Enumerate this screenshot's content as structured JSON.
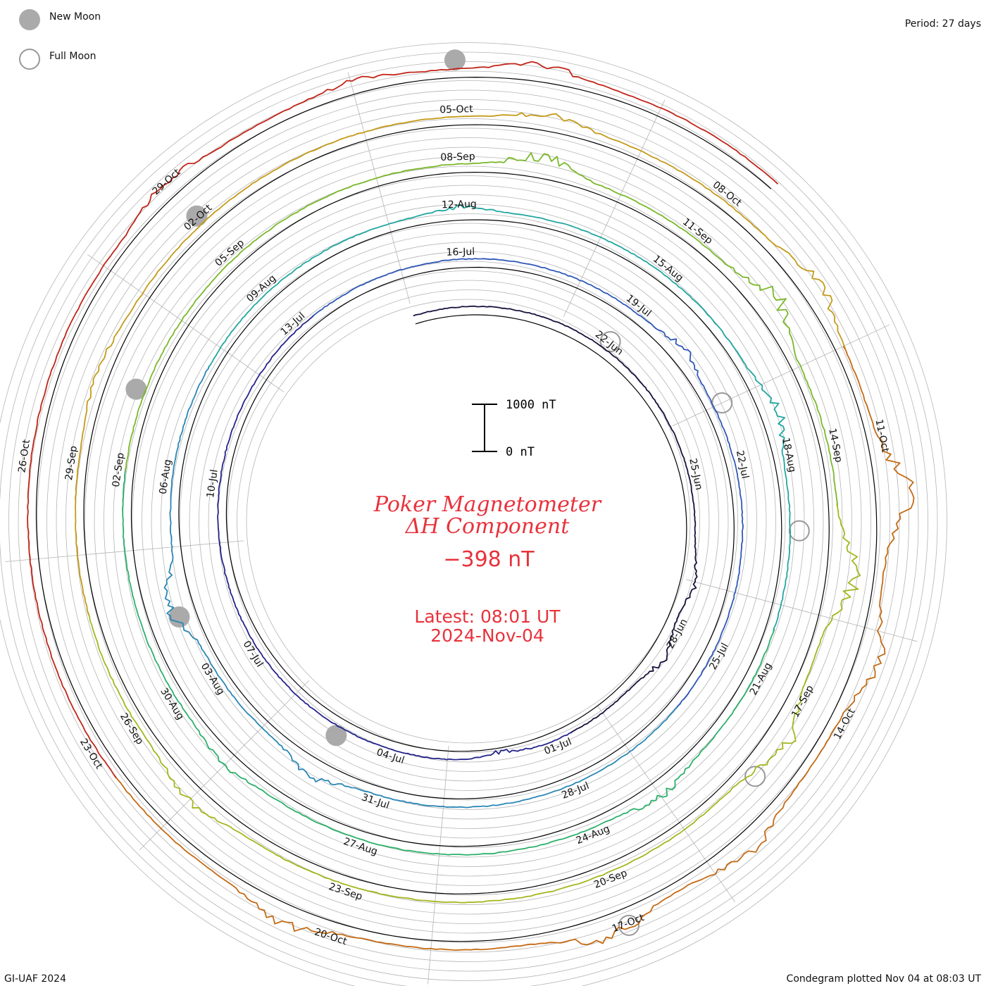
{
  "legend": {
    "new_moon": "New Moon",
    "full_moon": "Full Moon"
  },
  "period_label": "Period: 27 days",
  "title_line1": "Poker Magnetometer",
  "title_line2": "ΔH Component",
  "current_value": "−398 nT",
  "latest_time": "Latest: 08:01 UT",
  "latest_date": "2024-Nov-04",
  "credit": "GI-UAF 2024",
  "plotted_note": "Condegram plotted Nov 04 at 08:03 UT",
  "colors": {
    "grid": "#b4b4b4",
    "baseline": "#000000",
    "title": "#e8323c",
    "moon_fill": "#aaaaaa",
    "moon_stroke": "#999999"
  },
  "chart_data": {
    "type": "line",
    "layout": "spiral condegram",
    "period_days": 27,
    "start_date": "2024-06-18",
    "end_date": "2024-11-04",
    "scale_bar": {
      "low": 0,
      "high": 1000,
      "low_label": "0 nT",
      "high_label": "1000 nT"
    },
    "series_colors": [
      "#1a0f3c",
      "#25248a",
      "#2f58b8",
      "#2a86b5",
      "#22a6a0",
      "#2cb06a",
      "#7ab82a",
      "#a4b61c",
      "#c49a18",
      "#c46a14",
      "#c02418"
    ],
    "date_labels": [
      {
        "day": 4,
        "text": "22-Jun"
      },
      {
        "day": 7,
        "text": "25-Jun"
      },
      {
        "day": 10,
        "text": "28-Jun"
      },
      {
        "day": 13,
        "text": "01-Jul"
      },
      {
        "day": 16,
        "text": "04-Jul"
      },
      {
        "day": 19,
        "text": "07-Jul"
      },
      {
        "day": 22,
        "text": "10-Jul"
      },
      {
        "day": 25,
        "text": "13-Jul"
      },
      {
        "day": 28,
        "text": "16-Jul"
      },
      {
        "day": 31,
        "text": "19-Jul"
      },
      {
        "day": 34,
        "text": "22-Jul"
      },
      {
        "day": 37,
        "text": "25-Jul"
      },
      {
        "day": 40,
        "text": "28-Jul"
      },
      {
        "day": 43,
        "text": "31-Jul"
      },
      {
        "day": 46,
        "text": "03-Aug"
      },
      {
        "day": 49,
        "text": "06-Aug"
      },
      {
        "day": 52,
        "text": "09-Aug"
      },
      {
        "day": 55,
        "text": "12-Aug"
      },
      {
        "day": 58,
        "text": "15-Aug"
      },
      {
        "day": 61,
        "text": "18-Aug"
      },
      {
        "day": 64,
        "text": "21-Aug"
      },
      {
        "day": 67,
        "text": "24-Aug"
      },
      {
        "day": 70,
        "text": "27-Aug"
      },
      {
        "day": 73,
        "text": "30-Aug"
      },
      {
        "day": 76,
        "text": "02-Sep"
      },
      {
        "day": 79,
        "text": "05-Sep"
      },
      {
        "day": 82,
        "text": "08-Sep"
      },
      {
        "day": 85,
        "text": "11-Sep"
      },
      {
        "day": 88,
        "text": "14-Sep"
      },
      {
        "day": 91,
        "text": "17-Sep"
      },
      {
        "day": 94,
        "text": "20-Sep"
      },
      {
        "day": 97,
        "text": "23-Sep"
      },
      {
        "day": 100,
        "text": "26-Sep"
      },
      {
        "day": 103,
        "text": "29-Sep"
      },
      {
        "day": 106,
        "text": "02-Oct"
      },
      {
        "day": 109,
        "text": "05-Oct"
      },
      {
        "day": 112,
        "text": "08-Oct"
      },
      {
        "day": 115,
        "text": "11-Oct"
      },
      {
        "day": 118,
        "text": "14-Oct"
      },
      {
        "day": 121,
        "text": "17-Oct"
      },
      {
        "day": 124,
        "text": "20-Oct"
      },
      {
        "day": 127,
        "text": "23-Oct"
      },
      {
        "day": 130,
        "text": "26-Oct"
      },
      {
        "day": 133,
        "text": "29-Oct"
      }
    ],
    "moon_phases": [
      {
        "date": "2024-06-22",
        "type": "full"
      },
      {
        "date": "2024-07-05",
        "type": "new"
      },
      {
        "date": "2024-07-21",
        "type": "full"
      },
      {
        "date": "2024-08-04",
        "type": "new"
      },
      {
        "date": "2024-08-19",
        "type": "full"
      },
      {
        "date": "2024-09-03",
        "type": "new"
      },
      {
        "date": "2024-09-18",
        "type": "full"
      },
      {
        "date": "2024-10-02",
        "type": "new"
      },
      {
        "date": "2024-10-17",
        "type": "full"
      },
      {
        "date": "2024-11-01",
        "type": "new"
      }
    ],
    "disturbances": [
      {
        "day": 9.0,
        "amp": -350
      },
      {
        "day": 10.5,
        "amp": -450
      },
      {
        "day": 14.0,
        "amp": 250
      },
      {
        "day": 32.0,
        "amp": -380
      },
      {
        "day": 44.0,
        "amp": -480
      },
      {
        "day": 47.2,
        "amp": -850
      },
      {
        "day": 55.0,
        "amp": -250
      },
      {
        "day": 60.4,
        "amp": -550
      },
      {
        "day": 66.0,
        "amp": -400
      },
      {
        "day": 72.0,
        "amp": -300
      },
      {
        "day": 83.0,
        "amp": -650
      },
      {
        "day": 86.2,
        "amp": -850
      },
      {
        "day": 89.5,
        "amp": -1000
      },
      {
        "day": 91.5,
        "amp": -900
      },
      {
        "day": 99.0,
        "amp": -450
      },
      {
        "day": 104.0,
        "amp": -300
      },
      {
        "day": 110.0,
        "amp": -400
      },
      {
        "day": 113.3,
        "amp": -650
      },
      {
        "day": 115.6,
        "amp": -1200
      },
      {
        "day": 117.3,
        "amp": -700
      },
      {
        "day": 119.6,
        "amp": -650
      },
      {
        "day": 121.2,
        "amp": -700
      },
      {
        "day": 124.5,
        "amp": -600
      },
      {
        "day": 133.0,
        "amp": -450
      },
      {
        "day": 135.0,
        "amp": -250
      },
      {
        "day": 136.8,
        "amp": -450
      }
    ]
  }
}
